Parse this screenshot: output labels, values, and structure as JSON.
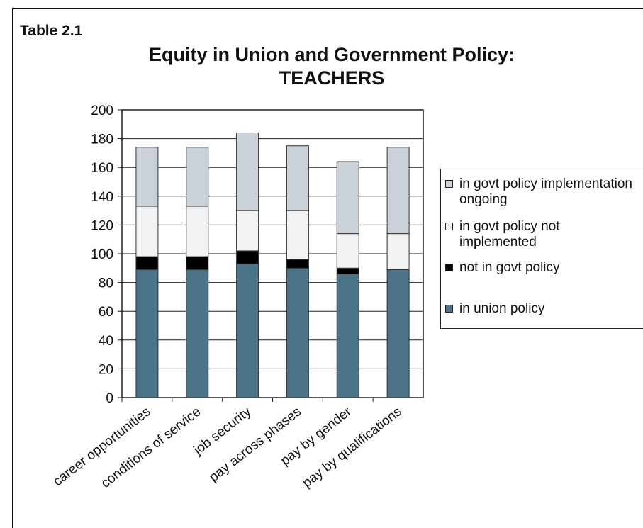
{
  "header": {
    "label": "Table 2.1"
  },
  "chart_data": {
    "type": "stacked-bar",
    "title": "Equity in Union and Government Policy:",
    "subtitle": "TEACHERS",
    "categories": [
      "career opportunities",
      "conditions of service",
      "job security",
      "pay across phases",
      "pay by gender",
      "pay by qualifications"
    ],
    "series": [
      {
        "name": "in union policy",
        "color": "#4b7387",
        "values": [
          89,
          89,
          93,
          90,
          86,
          89
        ]
      },
      {
        "name": "not in govt policy",
        "color": "#000000",
        "values": [
          9,
          9,
          9,
          6,
          4,
          0
        ]
      },
      {
        "name": "in govt policy not implemented",
        "color": "#f1f2f4",
        "values": [
          35,
          35,
          28,
          34,
          24,
          25
        ]
      },
      {
        "name": "in govt policy implementation ongoing",
        "color": "#cbd1d8",
        "values": [
          41,
          41,
          54,
          45,
          50,
          60
        ]
      }
    ],
    "ylim": [
      0,
      200
    ],
    "yticks": [
      0,
      20,
      40,
      60,
      80,
      100,
      120,
      140,
      160,
      180,
      200
    ],
    "grid": true,
    "legend": "right"
  }
}
